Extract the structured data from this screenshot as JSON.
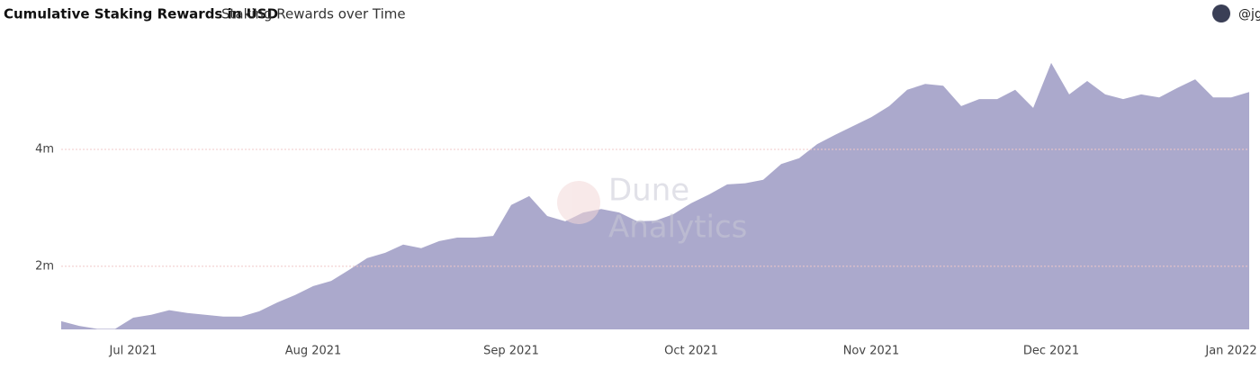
{
  "chart_data": {
    "type": "area",
    "title": "Cumulative Staking Rewards in USD",
    "subtitle": "Staking Rewards over Time",
    "author": "@jg",
    "watermark": [
      "Dune",
      "Analytics"
    ],
    "categories": [
      null,
      null,
      null,
      null,
      "Jul 2021",
      null,
      null,
      null,
      null,
      null,
      null,
      null,
      null,
      null,
      "Aug 2021",
      null,
      null,
      null,
      null,
      null,
      null,
      null,
      null,
      null,
      null,
      "Sep 2021",
      null,
      null,
      null,
      null,
      null,
      null,
      null,
      null,
      null,
      "Oct 2021",
      null,
      null,
      null,
      null,
      null,
      null,
      null,
      null,
      null,
      "Nov 2021",
      null,
      null,
      null,
      null,
      null,
      null,
      null,
      null,
      null,
      "Dec 2021",
      null,
      null,
      null,
      null,
      null,
      null,
      null,
      null,
      null,
      "Jan 2022",
      null
    ],
    "values": [
      1060000,
      980000,
      930000,
      930000,
      1120000,
      1170000,
      1250000,
      1200000,
      1170000,
      1140000,
      1140000,
      1230000,
      1380000,
      1510000,
      1660000,
      1750000,
      1940000,
      2140000,
      2230000,
      2370000,
      2310000,
      2430000,
      2490000,
      2490000,
      2520000,
      3050000,
      3200000,
      2860000,
      2770000,
      2920000,
      2980000,
      2920000,
      2770000,
      2780000,
      2890000,
      3080000,
      3230000,
      3400000,
      3420000,
      3480000,
      3750000,
      3850000,
      4090000,
      4250000,
      4400000,
      4550000,
      4740000,
      5020000,
      5120000,
      5090000,
      4740000,
      4860000,
      4860000,
      5020000,
      4710000,
      5480000,
      4940000,
      5170000,
      4940000,
      4860000,
      4940000,
      4890000,
      5050000,
      5200000,
      4890000,
      4890000,
      4980000
    ],
    "color": "#aba9cc",
    "ylim": [
      920000,
      5940000
    ],
    "yticks": [
      {
        "value": 2000000,
        "label": "2m"
      },
      {
        "value": 4000000,
        "label": "4m"
      }
    ],
    "grid": true
  }
}
